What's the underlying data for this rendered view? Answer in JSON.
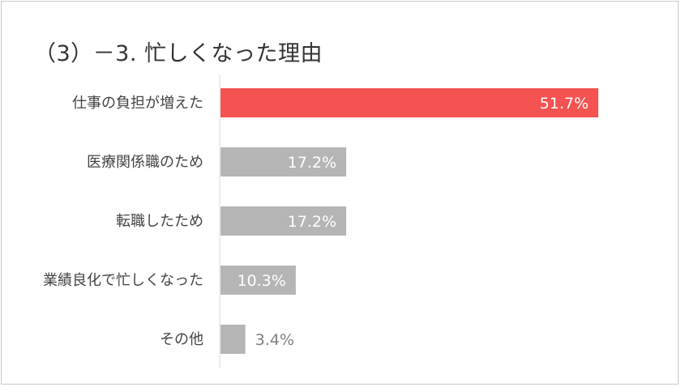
{
  "title": "（3）－3. 忙しくなった理由",
  "chart_data": {
    "type": "bar",
    "orientation": "horizontal",
    "categories": [
      "仕事の負担が増えた",
      "医療関係職のため",
      "転職したため",
      "業績良化で忙しくなった",
      "その他"
    ],
    "values": [
      51.7,
      17.2,
      17.2,
      10.3,
      3.4
    ],
    "value_labels": [
      "51.7%",
      "17.2%",
      "17.2%",
      "10.3%",
      "3.4%"
    ],
    "xlim": [
      0,
      51.7
    ],
    "colors": {
      "highlight": "#f55252",
      "default": "#b5b5b5",
      "label_inside": "#ffffff",
      "label_outside": "#7f7f7f"
    },
    "grid": false,
    "legend": "none"
  }
}
